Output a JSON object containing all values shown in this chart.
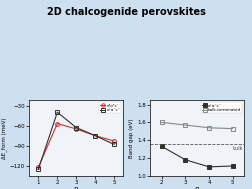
{
  "title": "2D chalcogenide perovskites",
  "left_plot": {
    "xlabel": "n",
    "ylabel": "ΔE_form (meV)",
    "series1": {
      "label": "σᵃσᵃc⁻",
      "x": [
        1,
        2,
        3,
        4,
        5
      ],
      "y": [
        -122,
        -57,
        -65,
        -75,
        -83
      ],
      "color": "#d63030",
      "marker": "o",
      "fillstyle": "none"
    },
    "series2": {
      "label": "σ⁻σ⁻c⁻",
      "x": [
        1,
        2,
        3,
        4,
        5
      ],
      "y": [
        -125,
        -40,
        -63,
        -75,
        -88
      ],
      "color": "#303030",
      "marker": "s",
      "fillstyle": "none"
    },
    "xlim": [
      0.5,
      5.5
    ],
    "ylim": [
      -135,
      -22
    ],
    "yticks": [
      -120,
      -90,
      -60,
      -30
    ],
    "xticks": [
      1,
      2,
      3,
      4,
      5
    ]
  },
  "right_plot": {
    "xlabel": "n",
    "ylabel": "Band gap (eV)",
    "series1": {
      "label": "σ⁻σ⁻c⁻",
      "x": [
        2,
        3,
        4,
        5
      ],
      "y": [
        1.33,
        1.18,
        1.1,
        1.11
      ],
      "color": "#303030",
      "marker": "s",
      "fillstyle": "full"
    },
    "series2": {
      "label": "bulk-terminated",
      "x": [
        2,
        3,
        4,
        5
      ],
      "y": [
        1.6,
        1.57,
        1.54,
        1.53
      ],
      "color": "#888888",
      "marker": "s",
      "fillstyle": "none"
    },
    "bulk_y": 1.36,
    "bulk_label": "bulk",
    "xlim": [
      1.5,
      5.5
    ],
    "ylim": [
      1.0,
      1.85
    ],
    "yticks": [
      1.0,
      1.2,
      1.4,
      1.6,
      1.8
    ],
    "xticks": [
      2,
      3,
      4,
      5
    ]
  },
  "bg_color": "#cde0f0",
  "plot_bg": "#f0f4f8"
}
